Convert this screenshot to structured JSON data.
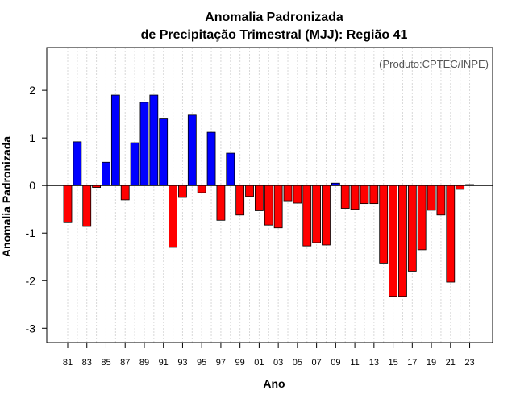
{
  "chart_data": {
    "type": "bar",
    "title_line1": "Anomalia Padronizada",
    "title_line2": "de Precipitação Trimestral (MJJ): Região 41",
    "xlabel": "Ano",
    "ylabel": "Anomalia Padronizada",
    "credit": "(Produto:CPTEC/INPE)",
    "ylim": [
      -3.3,
      2.9
    ],
    "yticks": [
      "-3",
      "-2",
      "-1",
      "0",
      "1",
      "2"
    ],
    "positive_color": "#0000ff",
    "negative_color": "#ff0000",
    "years": [
      "81",
      "82",
      "83",
      "84",
      "85",
      "86",
      "87",
      "88",
      "89",
      "90",
      "91",
      "92",
      "93",
      "94",
      "95",
      "96",
      "97",
      "98",
      "99",
      "00",
      "01",
      "02",
      "03",
      "04",
      "05",
      "06",
      "07",
      "08",
      "09",
      "10",
      "11",
      "12",
      "13",
      "14",
      "15",
      "16",
      "17",
      "18",
      "19",
      "20",
      "21",
      "22",
      "23"
    ],
    "x_tick_labels": [
      "81",
      "83",
      "85",
      "87",
      "89",
      "91",
      "93",
      "95",
      "97",
      "99",
      "01",
      "03",
      "05",
      "07",
      "09",
      "11",
      "13",
      "15",
      "17",
      "19",
      "21",
      "23"
    ],
    "values": [
      -0.78,
      0.92,
      -0.86,
      -0.04,
      0.49,
      1.9,
      -0.3,
      0.9,
      1.75,
      1.9,
      1.4,
      -1.3,
      -0.25,
      1.48,
      -0.15,
      1.12,
      -0.73,
      0.68,
      -0.62,
      -0.23,
      -0.53,
      -0.83,
      -0.89,
      -0.32,
      -0.37,
      -1.27,
      -1.2,
      -1.25,
      0.05,
      -0.48,
      -0.5,
      -0.38,
      -0.38,
      -1.63,
      -2.33,
      -2.33,
      -1.8,
      -1.35,
      -0.52,
      -0.62,
      -2.03,
      -0.08,
      0.02
    ]
  }
}
